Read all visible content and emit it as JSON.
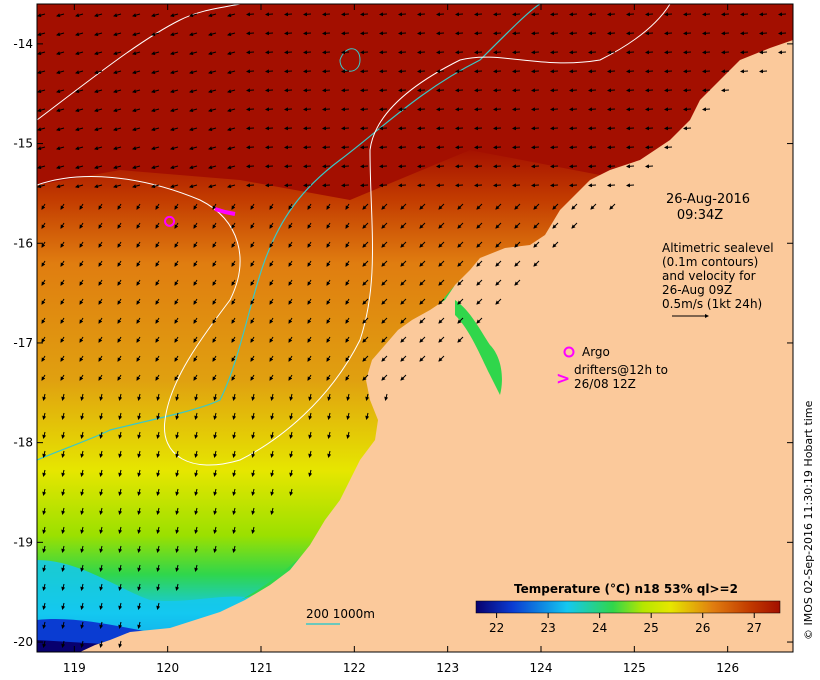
{
  "colors": {
    "land": "#fbc99b",
    "hot": "#a30f00",
    "warm": "#c23b00",
    "orange": "#e07d10",
    "yellow": "#e6e600",
    "green": "#30d64b",
    "cyan": "#14c8f0",
    "blue": "#0a3cd2",
    "navy": "#080a78",
    "isobath_200": "#3ac8c8",
    "sealevel_contour": "#ffffff",
    "marker": "#ff00ff",
    "ocean_mask": "#000000"
  },
  "map": {
    "lon_min": 118.6,
    "lon_max": 126.7,
    "lat_min": -20.1,
    "lat_max": -13.6,
    "lon_ticks": [
      "119",
      "120",
      "121",
      "122",
      "123",
      "124",
      "125",
      "126"
    ],
    "lat_ticks": [
      "-14",
      "-15",
      "-16",
      "-17",
      "-18",
      "-19",
      "-20"
    ]
  },
  "annotations": {
    "date": "26-Aug-2016",
    "time": "09:34Z",
    "altimetry_lines": [
      "Altimetric sealevel",
      "(0.1m contours)",
      "and velocity for",
      "26-Aug 09Z",
      "0.5m/s (1kt 24h)"
    ],
    "argo_label": "Argo",
    "drifter_lines": [
      "drifters@12h to",
      "26/08 12Z"
    ],
    "depth_legend": "200  1000m",
    "copyright": "© IMOS 02-Sep-2016 11:30:19 Hobart time"
  },
  "colorbar": {
    "title": "Temperature (°C) n18 53% ql>=2",
    "tick_labels": [
      "22",
      "23",
      "24",
      "25",
      "26",
      "27"
    ],
    "range": [
      21.6,
      27.5
    ],
    "stops": [
      "#08006e",
      "#0a3cd2",
      "#14c8f0",
      "#30d64b",
      "#b6e600",
      "#e6e600",
      "#e07d10",
      "#c23b00",
      "#a30f00"
    ]
  },
  "argo_float": {
    "lon": 120.02,
    "lat": -15.78
  },
  "drifter": {
    "lon": 120.65,
    "lat": -15.62
  }
}
